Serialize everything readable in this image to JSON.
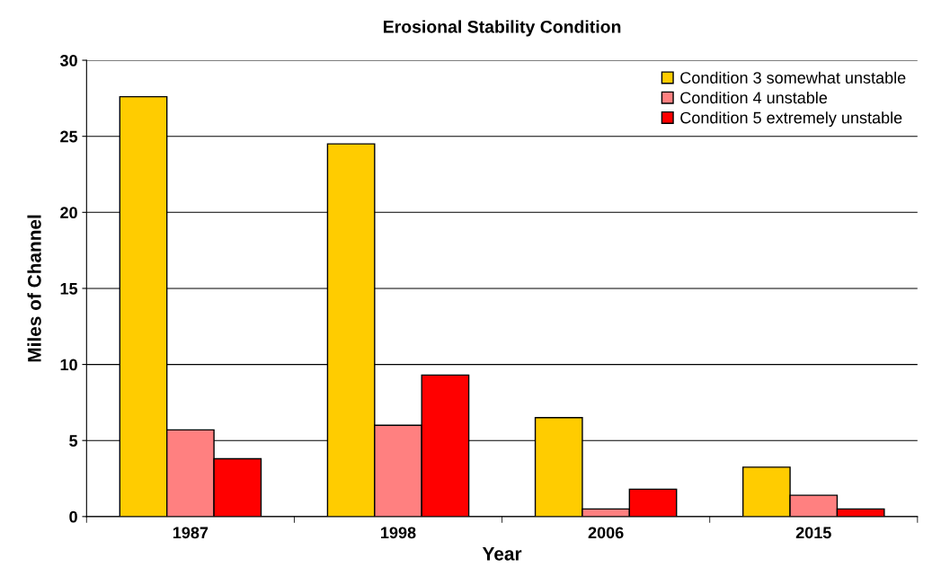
{
  "chart_data": {
    "type": "bar",
    "title": "Erosional Stability Condition",
    "xlabel": "Year",
    "ylabel": "Miles of Channel",
    "categories": [
      "1987",
      "1998",
      "2006",
      "2015"
    ],
    "series": [
      {
        "name": "Condition 3 somewhat unstable",
        "color": "#ffcc00",
        "values": [
          27.6,
          24.5,
          6.5,
          3.25
        ]
      },
      {
        "name": "Condition 4 unstable",
        "color": "#ff8080",
        "values": [
          5.7,
          6.0,
          0.5,
          1.4
        ]
      },
      {
        "name": "Condition 5 extremely unstable",
        "color": "#ff0000",
        "values": [
          3.8,
          9.3,
          1.8,
          0.5
        ]
      }
    ],
    "ylim": [
      0,
      30
    ],
    "yticks": [
      0,
      5,
      10,
      15,
      20,
      25,
      30
    ],
    "grid": "y",
    "legend": "top right"
  }
}
